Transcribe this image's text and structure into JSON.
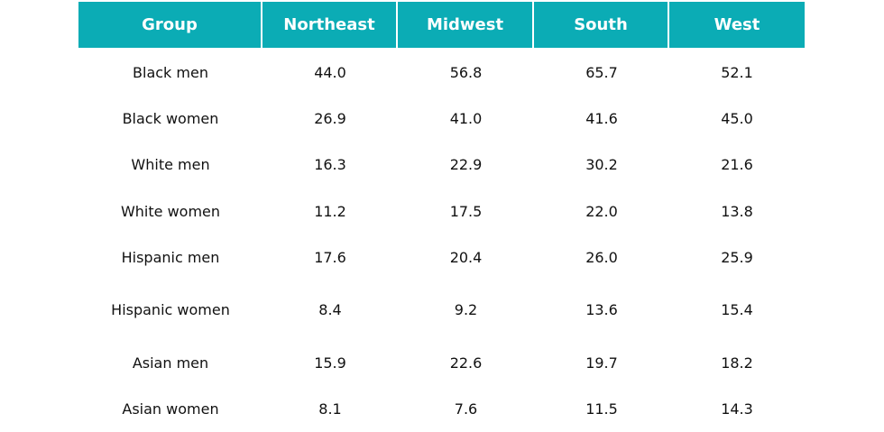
{
  "table": {
    "header": [
      "Group",
      "Northeast",
      "Midwest",
      "South",
      "West"
    ],
    "rows": [
      [
        "Black men",
        "44.0",
        "56.8",
        "65.7",
        "52.1"
      ],
      [
        "Black women",
        "26.9",
        "41.0",
        "41.6",
        "45.0"
      ],
      [
        "White men",
        "16.3",
        "22.9",
        "30.2",
        "21.6"
      ],
      [
        "White women",
        "11.2",
        "17.5",
        "22.0",
        "13.8"
      ],
      [
        "Hispanic men",
        "17.6",
        "20.4",
        "26.0",
        "25.9"
      ],
      [
        "Hispanic women",
        "8.4",
        "9.2",
        "13.6",
        "15.4"
      ],
      [
        "Asian men",
        "15.9",
        "22.6",
        "19.7",
        "18.2"
      ],
      [
        "Asian women",
        "8.1",
        "7.6",
        "11.5",
        "14.3"
      ]
    ]
  }
}
